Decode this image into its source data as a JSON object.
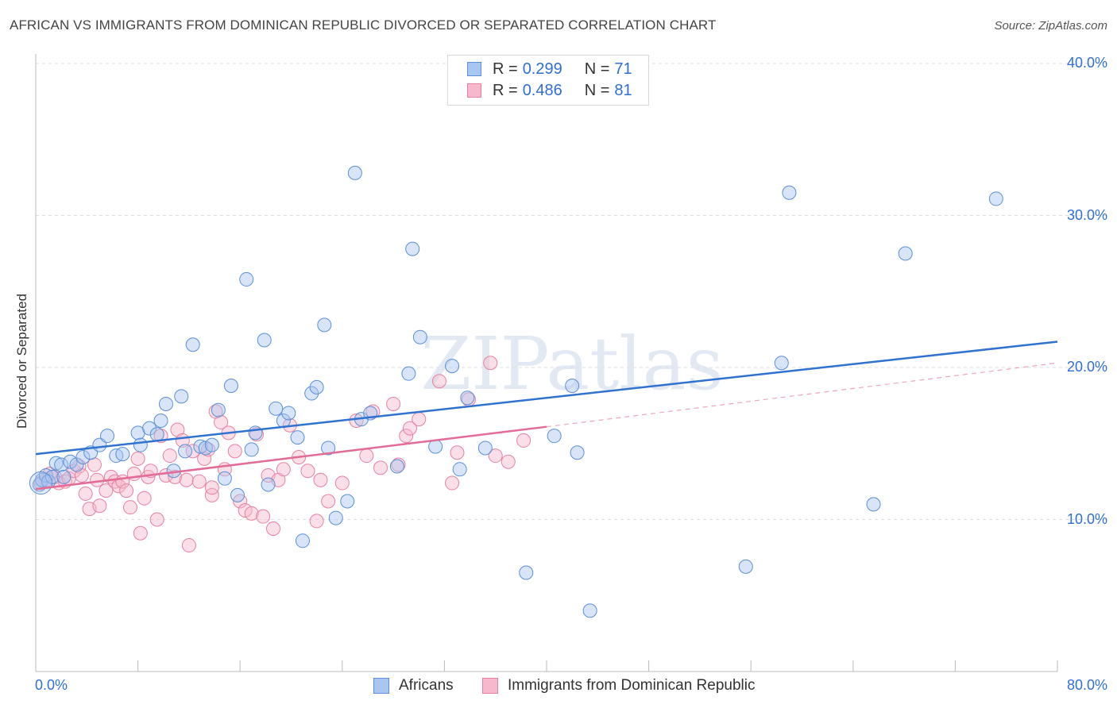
{
  "title": "AFRICAN VS IMMIGRANTS FROM DOMINICAN REPUBLIC DIVORCED OR SEPARATED CORRELATION CHART",
  "source": "Source: ZipAtlas.com",
  "watermark": "ZIPatlas",
  "colors": {
    "africans_fill": "#a9c6f0",
    "africans_stroke": "#5b8fd8",
    "africans_line": "#2f72d0",
    "dominican_fill": "#f7b7cc",
    "dominican_stroke": "#e7829f",
    "dominican_line": "#e36b97",
    "tick_label": "#2f6fd3",
    "grid": "#dddddd"
  },
  "legend_top": {
    "rows": [
      {
        "r_label": "R =",
        "r_value": "0.299",
        "n_label": "N =",
        "n_value": "71"
      },
      {
        "r_label": "R =",
        "r_value": "0.486",
        "n_label": "N =",
        "n_value": "81"
      }
    ]
  },
  "legend_bottom": {
    "items": [
      "Africans",
      "Immigrants from Dominican Republic"
    ]
  },
  "chart_data": {
    "type": "scatter",
    "title": "AFRICAN VS IMMIGRANTS FROM DOMINICAN REPUBLIC DIVORCED OR SEPARATED CORRELATION CHART",
    "xlabel": "",
    "ylabel": "Divorced or Separated",
    "xlim": [
      0,
      80
    ],
    "ylim": [
      0,
      40
    ],
    "x_tick_labels": [
      "0.0%",
      "80.0%"
    ],
    "y_ticks": [
      10,
      20,
      30,
      40
    ],
    "y_tick_labels": [
      "10.0%",
      "20.0%",
      "30.0%",
      "40.0%"
    ],
    "grid": true,
    "legend_position": "top-center",
    "series": [
      {
        "name": "Africans",
        "r": 0.299,
        "n": 71,
        "trend": {
          "x": [
            0,
            80
          ],
          "y": [
            14.3,
            21.7
          ]
        },
        "points": [
          [
            0.3,
            12.3
          ],
          [
            0.5,
            12.6
          ],
          [
            0.8,
            12.9
          ],
          [
            1.0,
            12.5
          ],
          [
            1.3,
            12.8
          ],
          [
            1.6,
            13.7
          ],
          [
            2.0,
            13.6
          ],
          [
            2.2,
            12.8
          ],
          [
            2.7,
            13.8
          ],
          [
            3.2,
            13.6
          ],
          [
            3.7,
            14.1
          ],
          [
            4.3,
            14.4
          ],
          [
            5.0,
            14.9
          ],
          [
            5.6,
            15.5
          ],
          [
            6.3,
            14.2
          ],
          [
            6.8,
            14.3
          ],
          [
            8.0,
            15.7
          ],
          [
            8.2,
            14.9
          ],
          [
            8.9,
            16.0
          ],
          [
            9.5,
            15.6
          ],
          [
            9.8,
            16.5
          ],
          [
            10.2,
            17.6
          ],
          [
            10.8,
            13.2
          ],
          [
            11.4,
            18.1
          ],
          [
            11.7,
            14.5
          ],
          [
            12.3,
            21.5
          ],
          [
            12.9,
            14.8
          ],
          [
            13.3,
            14.7
          ],
          [
            13.8,
            14.9
          ],
          [
            14.3,
            17.2
          ],
          [
            14.8,
            12.7
          ],
          [
            15.3,
            18.8
          ],
          [
            15.8,
            11.6
          ],
          [
            16.5,
            25.8
          ],
          [
            16.9,
            14.6
          ],
          [
            17.2,
            15.7
          ],
          [
            17.9,
            21.8
          ],
          [
            18.2,
            12.3
          ],
          [
            18.8,
            17.3
          ],
          [
            19.4,
            16.5
          ],
          [
            19.8,
            17.0
          ],
          [
            20.5,
            15.4
          ],
          [
            20.9,
            8.6
          ],
          [
            21.6,
            18.3
          ],
          [
            22.0,
            18.7
          ],
          [
            22.6,
            22.8
          ],
          [
            22.9,
            14.7
          ],
          [
            23.5,
            10.1
          ],
          [
            24.4,
            11.2
          ],
          [
            25.0,
            32.8
          ],
          [
            25.5,
            16.6
          ],
          [
            26.2,
            17.0
          ],
          [
            28.3,
            13.5
          ],
          [
            29.2,
            19.6
          ],
          [
            29.5,
            27.8
          ],
          [
            30.1,
            22.0
          ],
          [
            31.3,
            14.8
          ],
          [
            32.6,
            20.1
          ],
          [
            33.2,
            13.3
          ],
          [
            33.8,
            18.0
          ],
          [
            35.2,
            14.7
          ],
          [
            38.4,
            6.5
          ],
          [
            40.6,
            15.5
          ],
          [
            42.0,
            18.8
          ],
          [
            42.4,
            14.4
          ],
          [
            43.4,
            4.0
          ],
          [
            55.6,
            6.9
          ],
          [
            58.4,
            20.3
          ],
          [
            59.0,
            31.5
          ],
          [
            65.6,
            11.0
          ],
          [
            68.1,
            27.5
          ],
          [
            75.2,
            31.1
          ]
        ]
      },
      {
        "name": "Immigrants from Dominican Republic",
        "r": 0.486,
        "n": 81,
        "trend": {
          "x": [
            0,
            40
          ],
          "y": [
            12.0,
            16.1
          ]
        },
        "trend_extension": {
          "x": [
            40,
            80
          ],
          "y": [
            16.1,
            20.3
          ]
        },
        "points": [
          [
            0.4,
            12.4
          ],
          [
            0.8,
            12.6
          ],
          [
            1.1,
            13.0
          ],
          [
            1.5,
            12.8
          ],
          [
            1.8,
            12.4
          ],
          [
            2.3,
            12.5
          ],
          [
            2.6,
            12.7
          ],
          [
            3.0,
            13.2
          ],
          [
            3.4,
            13.5
          ],
          [
            3.6,
            12.9
          ],
          [
            3.9,
            11.7
          ],
          [
            4.2,
            10.7
          ],
          [
            4.6,
            13.6
          ],
          [
            4.8,
            12.6
          ],
          [
            5.0,
            10.9
          ],
          [
            5.5,
            11.9
          ],
          [
            5.9,
            12.8
          ],
          [
            6.2,
            12.5
          ],
          [
            6.5,
            12.2
          ],
          [
            6.8,
            12.5
          ],
          [
            7.1,
            11.9
          ],
          [
            7.4,
            10.8
          ],
          [
            7.7,
            13.0
          ],
          [
            8.0,
            14.0
          ],
          [
            8.2,
            9.1
          ],
          [
            8.5,
            11.4
          ],
          [
            8.8,
            12.8
          ],
          [
            9.0,
            13.2
          ],
          [
            9.5,
            10.0
          ],
          [
            9.8,
            15.5
          ],
          [
            10.2,
            12.9
          ],
          [
            10.5,
            14.2
          ],
          [
            10.9,
            12.8
          ],
          [
            11.1,
            15.9
          ],
          [
            11.5,
            15.2
          ],
          [
            11.8,
            12.6
          ],
          [
            12.0,
            8.3
          ],
          [
            12.3,
            14.5
          ],
          [
            12.8,
            12.5
          ],
          [
            13.2,
            14.0
          ],
          [
            13.5,
            14.6
          ],
          [
            13.8,
            11.6
          ],
          [
            14.1,
            17.1
          ],
          [
            14.5,
            16.4
          ],
          [
            14.8,
            13.3
          ],
          [
            15.1,
            15.7
          ],
          [
            15.6,
            14.5
          ],
          [
            16.0,
            11.2
          ],
          [
            16.4,
            10.6
          ],
          [
            16.9,
            10.4
          ],
          [
            17.3,
            15.6
          ],
          [
            17.8,
            10.2
          ],
          [
            18.2,
            12.9
          ],
          [
            18.6,
            9.4
          ],
          [
            19.0,
            12.6
          ],
          [
            19.4,
            13.3
          ],
          [
            19.9,
            16.2
          ],
          [
            20.6,
            14.1
          ],
          [
            21.3,
            13.2
          ],
          [
            22.3,
            12.6
          ],
          [
            22.9,
            11.2
          ],
          [
            24.0,
            12.4
          ],
          [
            25.1,
            16.5
          ],
          [
            25.9,
            14.2
          ],
          [
            26.4,
            17.1
          ],
          [
            27.0,
            13.4
          ],
          [
            28.0,
            17.6
          ],
          [
            28.4,
            13.6
          ],
          [
            29.0,
            15.5
          ],
          [
            29.3,
            16.0
          ],
          [
            30.0,
            16.6
          ],
          [
            31.6,
            19.1
          ],
          [
            32.6,
            12.4
          ],
          [
            33.0,
            14.4
          ],
          [
            33.9,
            17.9
          ],
          [
            35.6,
            20.3
          ],
          [
            36.0,
            14.2
          ],
          [
            37.0,
            13.8
          ],
          [
            38.2,
            15.2
          ],
          [
            22.0,
            9.9
          ],
          [
            13.8,
            12.1
          ]
        ]
      }
    ]
  }
}
